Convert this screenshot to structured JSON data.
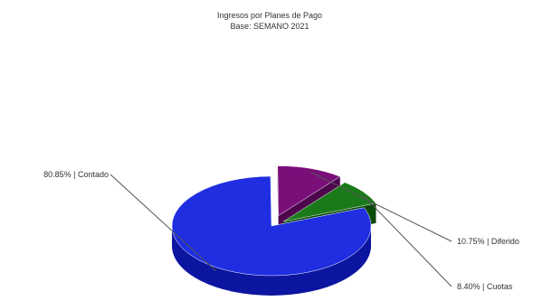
{
  "chart_data": {
    "type": "pie",
    "title": "Ingresos por Planes de Pago",
    "subtitle": "Base: SEMANO 2021",
    "slices": [
      {
        "label": "80.85% | Contado",
        "value": 80.85,
        "color": "#1f2ee0",
        "dark": "#0c15a0",
        "explode": 0.0
      },
      {
        "label": "10.75% | Diferido",
        "value": 10.75,
        "color": "#7a0f7a",
        "dark": "#4d064d",
        "explode": 0.22
      },
      {
        "label": "8.40% | Cuotas",
        "value": 8.4,
        "color": "#1a7a1a",
        "dark": "#0c4a0c",
        "explode": 0.15
      }
    ],
    "legend": "none",
    "style": "3d-exploded"
  }
}
